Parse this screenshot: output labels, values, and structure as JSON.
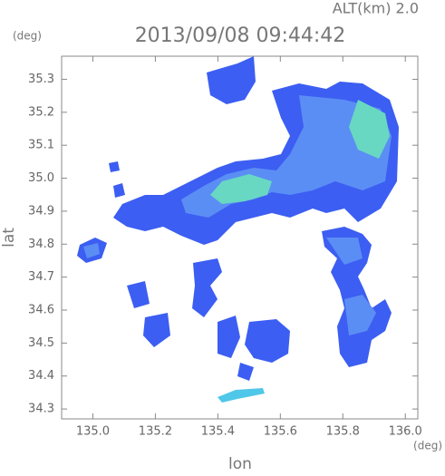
{
  "chart_data": {
    "type": "map",
    "title": "2013/09/08 09:44:42",
    "annotation": "ALT(km) 2.0",
    "y_unit": "(deg)",
    "x_unit": "(deg)",
    "xlabel": "lon",
    "ylabel": "lat",
    "xlim": [
      134.9,
      136.04
    ],
    "ylim": [
      34.27,
      35.37
    ],
    "xticks": [
      {
        "value": 135,
        "label": "135.0"
      },
      135.2,
      135.4,
      135.6,
      135.8,
      {
        "value": 136,
        "label": "136.0"
      }
    ],
    "yticks": [
      34.3,
      34.4,
      34.5,
      34.6,
      34.7,
      34.8,
      34.9,
      {
        "value": 35,
        "label": "35.0"
      },
      35.1,
      35.2,
      35.3
    ]
  }
}
